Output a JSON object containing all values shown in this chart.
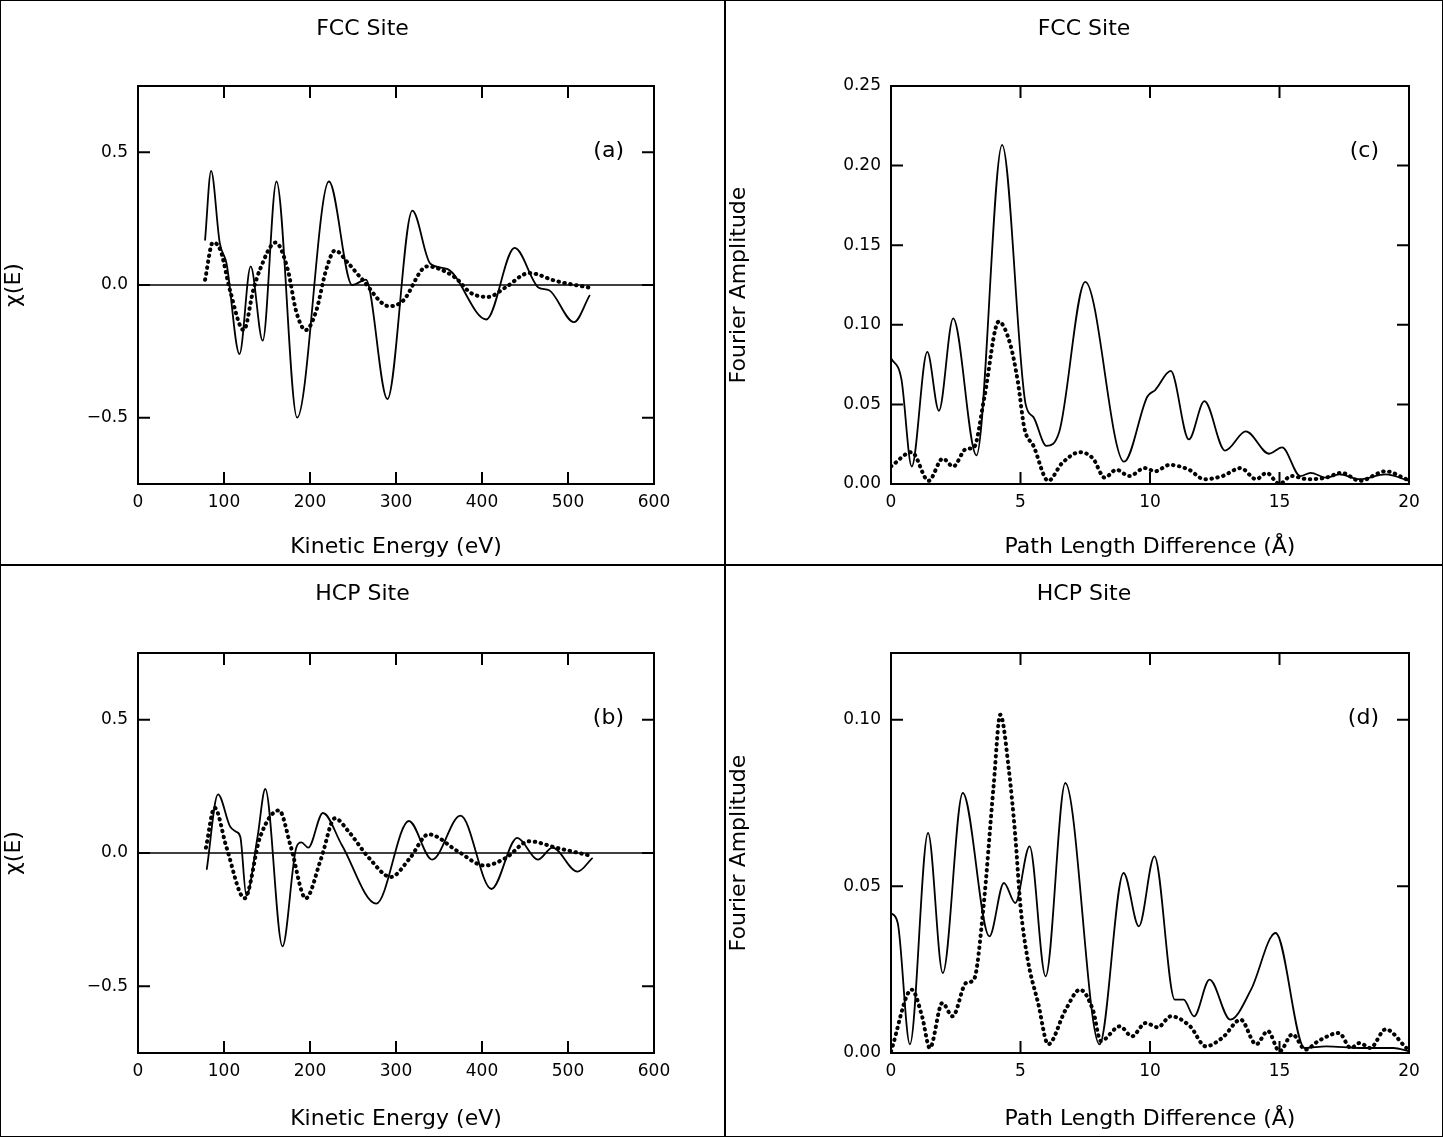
{
  "chart_data": [
    {
      "type": "line",
      "title": "FCC Site",
      "xlabel": "Kinetic Energy (eV)",
      "ylabel": "χ(E)",
      "annotations": [
        "(a)"
      ],
      "xlim": [
        0,
        600
      ],
      "xticks": [
        0,
        100,
        200,
        300,
        400,
        500,
        600
      ],
      "ylim": [
        -0.75,
        0.75
      ],
      "yticks": [
        {
          "value": -0.5,
          "label": "−0.5"
        },
        {
          "value": 0,
          "label": "0.0"
        },
        {
          "value": 0.5,
          "label": "0.5"
        }
      ],
      "marker": "none",
      "ref_lines": [
        {
          "axis": "y",
          "value": 0
        }
      ],
      "series": [
        {
          "color": "#000000",
          "line_style": "solid",
          "x": [
            78,
            85,
            95,
            103,
            118,
            131,
            145,
            161,
            185,
            222,
            249,
            265,
            290,
            319,
            340,
            360,
            405,
            438,
            466,
            478,
            507,
            525
          ],
          "values": [
            0.17,
            0.43,
            0.16,
            0.08,
            -0.26,
            0.07,
            -0.21,
            0.39,
            -0.5,
            0.39,
            0.0,
            0.02,
            -0.43,
            0.28,
            0.08,
            0.06,
            -0.13,
            0.14,
            -0.01,
            -0.02,
            -0.14,
            -0.04
          ]
        },
        {
          "color": "#000000",
          "line_style": "dotted",
          "x": [
            78,
            87,
            96,
            107,
            123,
            134,
            142,
            160,
            174,
            184,
            195,
            207,
            219,
            229,
            245,
            261,
            292,
            308,
            336,
            368,
            387,
            407,
            427,
            455,
            486,
            525
          ],
          "values": [
            0.02,
            0.16,
            0.13,
            -0.02,
            -0.17,
            -0.02,
            0.06,
            0.16,
            0.06,
            -0.1,
            -0.17,
            -0.1,
            0.06,
            0.13,
            0.08,
            0.02,
            -0.08,
            -0.06,
            0.07,
            0.03,
            -0.03,
            -0.045,
            -0.01,
            0.045,
            0.015,
            -0.01
          ]
        }
      ]
    },
    {
      "type": "line",
      "title": "FCC Site",
      "xlabel": "Path Length Difference (Å)",
      "ylabel": "Fourier Amplitude",
      "annotations": [
        "(c)"
      ],
      "xlim": [
        0,
        20
      ],
      "xticks": [
        0,
        5,
        10,
        15,
        20
      ],
      "ylim": [
        0,
        0.25
      ],
      "yticks": [
        {
          "value": 0,
          "label": "0.00"
        },
        {
          "value": 0.05,
          "label": "0.05"
        },
        {
          "value": 0.1,
          "label": "0.10"
        },
        {
          "value": 0.15,
          "label": "0.15"
        },
        {
          "value": 0.2,
          "label": "0.20"
        },
        {
          "value": 0.25,
          "label": "0.25"
        }
      ],
      "marker": "none",
      "series": [
        {
          "color": "#000000",
          "line_style": "solid",
          "x": [
            0,
            0.4,
            0.8,
            1.4,
            1.85,
            2.4,
            3.3,
            4.29,
            5.2,
            5.5,
            6.0,
            6.5,
            7.5,
            9.0,
            9.9,
            10.2,
            10.8,
            11.5,
            12.1,
            12.9,
            13.7,
            14.6,
            15.1,
            15.8,
            16.2,
            16.8,
            17.3,
            18.1,
            19.1,
            20
          ],
          "values": [
            0.079,
            0.066,
            0.011,
            0.083,
            0.046,
            0.104,
            0.018,
            0.213,
            0.05,
            0.042,
            0.024,
            0.033,
            0.127,
            0.014,
            0.055,
            0.059,
            0.071,
            0.028,
            0.052,
            0.021,
            0.033,
            0.019,
            0.023,
            0.005,
            0.007,
            0.004,
            0.006,
            0.003,
            0.006,
            0.002
          ]
        },
        {
          "color": "#000000",
          "line_style": "dotted",
          "x": [
            0,
            0.8,
            1.45,
            2.0,
            2.4,
            2.9,
            3.2,
            3.6,
            4.16,
            4.6,
            4.9,
            5.15,
            5.5,
            6.07,
            6.6,
            7.3,
            7.8,
            8.25,
            8.7,
            9.2,
            9.8,
            10.2,
            10.75,
            11.5,
            12.1,
            12.8,
            13.5,
            14.1,
            14.5,
            15.0,
            15.45,
            16.1,
            16.8,
            17.4,
            18.1,
            19.1,
            19.9
          ],
          "values": [
            0.011,
            0.02,
            0.002,
            0.016,
            0.011,
            0.022,
            0.023,
            0.054,
            0.102,
            0.088,
            0.064,
            0.035,
            0.024,
            0.002,
            0.013,
            0.02,
            0.016,
            0.004,
            0.009,
            0.005,
            0.01,
            0.008,
            0.012,
            0.009,
            0.003,
            0.005,
            0.01,
            0.003,
            0.007,
            0.0,
            0.005,
            0.003,
            0.004,
            0.007,
            0.002,
            0.008,
            0.003
          ]
        }
      ]
    },
    {
      "type": "line",
      "title": "HCP Site",
      "xlabel": "Kinetic Energy (eV)",
      "ylabel": "χ(E)",
      "annotations": [
        "(b)"
      ],
      "xlim": [
        0,
        600
      ],
      "xticks": [
        0,
        100,
        200,
        300,
        400,
        500,
        600
      ],
      "ylim": [
        -0.75,
        0.75
      ],
      "yticks": [
        {
          "value": -0.5,
          "label": "−0.5"
        },
        {
          "value": 0,
          "label": "0.0"
        },
        {
          "value": 0.5,
          "label": "0.5"
        }
      ],
      "marker": "none",
      "ref_lines": [
        {
          "axis": "y",
          "value": 0
        }
      ],
      "series": [
        {
          "color": "#000000",
          "line_style": "solid",
          "x": [
            80,
            93,
            107,
            114,
            119,
            126,
            139,
            148,
            168,
            184,
            190,
            198,
            215,
            237,
            277,
            315,
            342,
            375,
            411,
            441,
            465,
            482,
            511,
            528
          ],
          "values": [
            -0.06,
            0.22,
            0.1,
            0.08,
            0.06,
            -0.16,
            0.06,
            0.24,
            -0.35,
            0.02,
            0.04,
            0.02,
            0.15,
            0.03,
            -0.19,
            0.12,
            -0.025,
            0.14,
            -0.135,
            0.057,
            -0.025,
            0.02,
            -0.07,
            -0.02
          ]
        },
        {
          "color": "#000000",
          "line_style": "dotted",
          "x": [
            79,
            89,
            103,
            124,
            142,
            164,
            178,
            195,
            213,
            229,
            245,
            269,
            294,
            316,
            338,
            372,
            403,
            427,
            455,
            486,
            526
          ],
          "values": [
            0.02,
            0.17,
            0.02,
            -0.17,
            0.06,
            0.16,
            0.02,
            -0.17,
            -0.02,
            0.13,
            0.08,
            -0.02,
            -0.09,
            -0.02,
            0.07,
            0.006,
            -0.047,
            -0.02,
            0.044,
            0.02,
            -0.01
          ]
        }
      ]
    },
    {
      "type": "line",
      "title": "HCP Site",
      "xlabel": "Path Length Difference (Å)",
      "ylabel": "Fourier Amplitude",
      "annotations": [
        "(d)"
      ],
      "xlim": [
        0,
        20
      ],
      "xticks": [
        0,
        5,
        10,
        15,
        20
      ],
      "ylim": [
        0,
        0.12
      ],
      "yticks": [
        {
          "value": 0,
          "label": "0.00"
        },
        {
          "value": 0.05,
          "label": "0.05"
        },
        {
          "value": 0.1,
          "label": "0.10"
        }
      ],
      "marker": "none",
      "series": [
        {
          "color": "#000000",
          "line_style": "solid",
          "x": [
            0,
            0.26,
            0.73,
            1.43,
            2.0,
            2.77,
            3.8,
            4.36,
            4.8,
            5.35,
            5.97,
            6.73,
            8.05,
            8.98,
            9.57,
            10.17,
            10.96,
            11.3,
            11.7,
            12.3,
            13.1,
            13.9,
            14.85,
            15.97,
            16.8,
            18.1,
            19.4,
            20
          ],
          "values": [
            0.042,
            0.039,
            0.0026,
            0.066,
            0.024,
            0.078,
            0.035,
            0.051,
            0.045,
            0.062,
            0.023,
            0.081,
            0.0026,
            0.054,
            0.038,
            0.059,
            0.016,
            0.016,
            0.011,
            0.022,
            0.01,
            0.019,
            0.036,
            0.0015,
            0.002,
            0.0015,
            0.0015,
            0.0005
          ]
        },
        {
          "color": "#000000",
          "line_style": "dotted",
          "x": [
            0,
            0.8,
            1.2,
            1.5,
            1.98,
            2.38,
            2.9,
            3.2,
            3.56,
            3.96,
            4.22,
            4.55,
            4.8,
            5.0,
            5.28,
            5.68,
            6.07,
            6.73,
            7.3,
            7.8,
            8.1,
            8.84,
            9.3,
            9.83,
            10.3,
            10.8,
            11.55,
            12.15,
            12.8,
            13.5,
            14.1,
            14.55,
            15.0,
            15.5,
            16.0,
            16.5,
            17.3,
            17.75,
            18.1,
            18.5,
            19.1,
            19.9
          ],
          "values": [
            0.0005,
            0.019,
            0.011,
            0.0015,
            0.015,
            0.011,
            0.021,
            0.022,
            0.043,
            0.08,
            0.1015,
            0.085,
            0.065,
            0.044,
            0.028,
            0.015,
            0.0026,
            0.0128,
            0.019,
            0.0128,
            0.0036,
            0.008,
            0.005,
            0.009,
            0.0077,
            0.011,
            0.008,
            0.002,
            0.0046,
            0.01,
            0.0026,
            0.0066,
            0.0005,
            0.0056,
            0.001,
            0.0036,
            0.006,
            0.0015,
            0.003,
            0.0015,
            0.0071,
            0.0015
          ]
        }
      ]
    }
  ]
}
